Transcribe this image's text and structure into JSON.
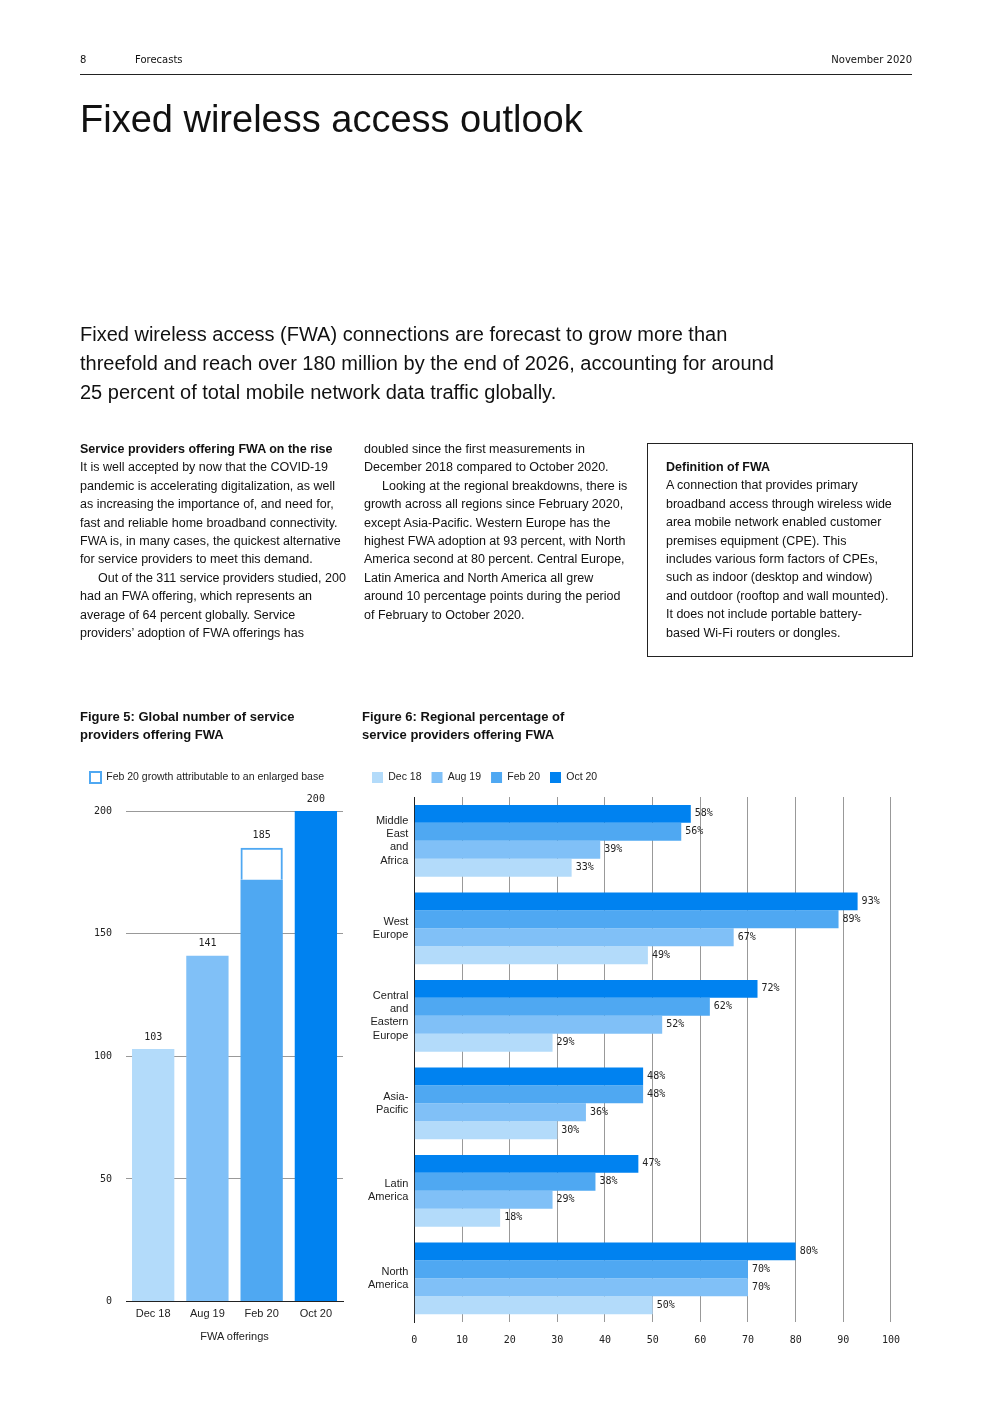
{
  "chart_data": [
    {
      "type": "other",
      "title": "Fixed wireless access outlook",
      "subtitle": "Fixed wireless access (FWA) connections are forecast to grow more than threefold and reach over 180 million by the end of 2026, accounting for around 25 percent of total mobile network data traffic globally.",
      "annotations": [
        "8",
        "Forecasts",
        "November 2020",
        "Service providers offering FWA on the rise",
        "It is well accepted by now that the COVID-19 pandemic is accelerating digitalization, as well as increasing the importance of, and need for, fast and reliable home broadband connectivity. FWA is, in many cases, the quickest alternative for service providers to meet this demand.",
        "Out of the 311 service providers studied, 200 had an FWA offering, which represents an average of 64 percent globally. Service providers’ adoption of FWA offerings has doubled since the first measurements in December 2018 compared to October 2020.",
        "Looking at the regional breakdowns, there is growth across all regions since February 2020, except Asia-Pacific. Western Europe has the highest FWA adoption at 93 percent, with North America second at 80 percent. Central Europe, Latin America and North America all grew around 10 percentage points during the period of February to October 2020.",
        "Definition of FWA",
        "A connection that provides primary broadband access through wireless wide area mobile network enabled customer premises equipment (CPE). This includes various form factors of CPEs, such as indoor (desktop and window) and outdoor (rooftop and wall mounted). It does not include portable battery-based Wi-Fi routers or dongles."
      ]
    },
    {
      "type": "bar",
      "title": "Figure 5: Global number of service providers offering FWA",
      "xlabel": "FWA offerings",
      "categories": [
        "Dec 18",
        "Aug 19",
        "Feb 20",
        "Oct 20"
      ],
      "stacked": true,
      "series": [
        {
          "color": "#4fa8f2",
          "colors": [
            "#b3dbfa",
            "#80c0f7",
            "#4fa8f2",
            "#0082f0"
          ],
          "values": [
            103,
            141,
            172,
            200
          ]
        },
        {
          "name": "Feb 20 growth attributable to an enlarged base",
          "color": "#4fa8f2",
          "values": [
            null,
            null,
            13,
            null
          ]
        }
      ],
      "totals": [
        "103",
        "141",
        "185",
        "200"
      ],
      "ylim": [
        0,
        200
      ],
      "yticks": [
        0,
        50,
        100,
        150,
        200
      ],
      "grid": "y",
      "legend": "top left"
    },
    {
      "type": "bar",
      "orientation": "horizontal",
      "title": "Figure 6: Regional percentage of service providers offering FWA",
      "categories": [
        "Middle East and Africa",
        "West Europe",
        "Central and Eastern Europe",
        "Asia- Pacific",
        "Latin America",
        "North America"
      ],
      "series": [
        {
          "name": "Dec 18",
          "color": "#b3dbfa",
          "values": [
            33,
            49,
            29,
            30,
            18,
            50
          ],
          "value_labels": [
            "33%",
            "49%",
            "29%",
            "30%",
            "18%",
            "50%"
          ]
        },
        {
          "name": "Aug 19",
          "color": "#80c0f7",
          "values": [
            39,
            67,
            52,
            36,
            29,
            70
          ],
          "value_labels": [
            "39%",
            "67%",
            "52%",
            "36%",
            "29%",
            "70%"
          ]
        },
        {
          "name": "Feb 20",
          "color": "#4fa8f2",
          "values": [
            56,
            89,
            62,
            48,
            38,
            70
          ],
          "value_labels": [
            "56%",
            "89%",
            "62%",
            "48%",
            "38%",
            "70%"
          ]
        },
        {
          "name": "Oct 20",
          "color": "#0082f0",
          "values": [
            58,
            93,
            72,
            48,
            47,
            80
          ],
          "value_labels": [
            "58%",
            "93%",
            "72%",
            "48%",
            "47%",
            "80%"
          ]
        }
      ],
      "xlim": [
        0,
        100
      ],
      "xticks": [
        0,
        10,
        20,
        30,
        40,
        50,
        60,
        70,
        80,
        90,
        100
      ],
      "grid": "x",
      "legend": "top left"
    }
  ]
}
